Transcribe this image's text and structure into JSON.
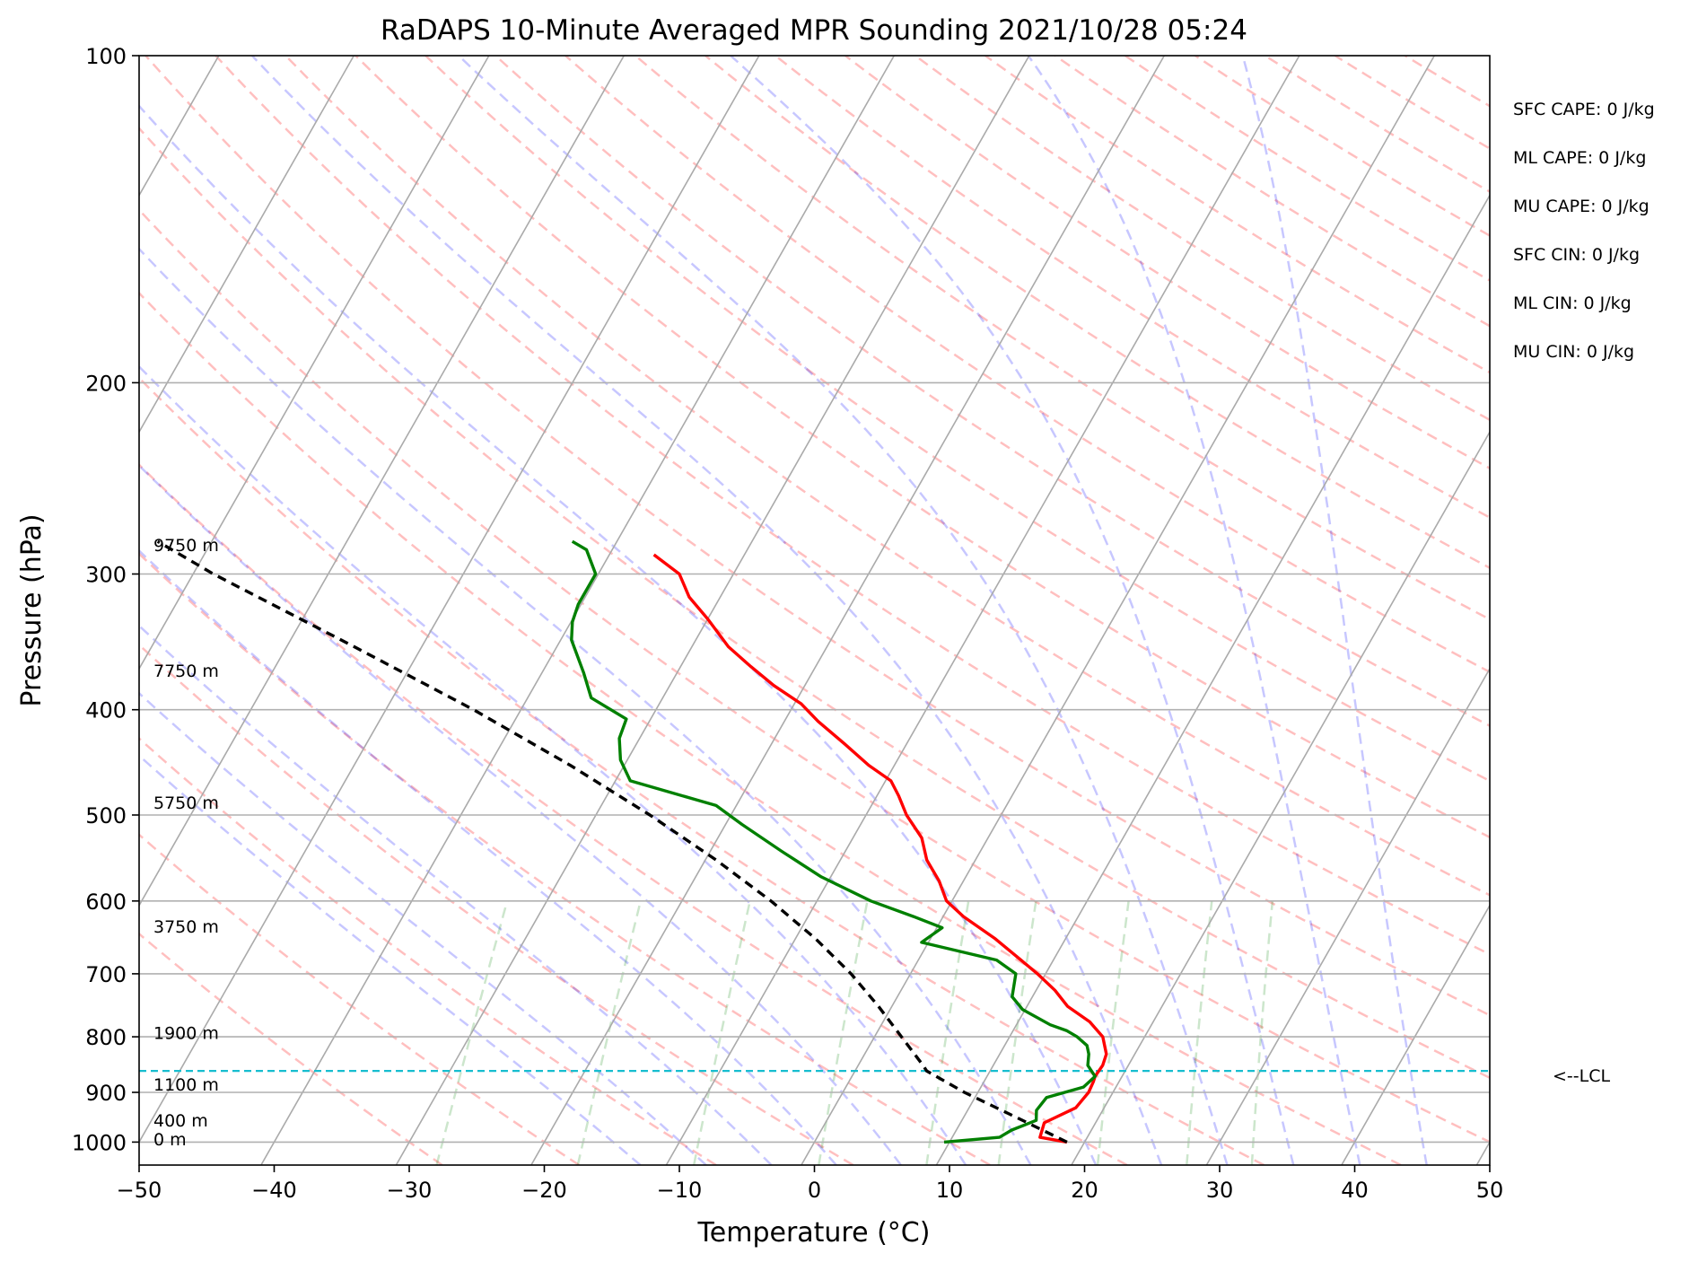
{
  "chart_data": {
    "type": "line",
    "title": "RaDAPS 10-Minute Averaged MPR Sounding 2021/10/28 05:24",
    "xlabel": "Temperature (°C)",
    "ylabel": "Pressure (hPa)",
    "xlim": [
      -50,
      50
    ],
    "ylim": [
      1050,
      100
    ],
    "x_ticks": [
      -50,
      -40,
      -30,
      -20,
      -10,
      0,
      10,
      20,
      30,
      40,
      50
    ],
    "x_tick_labels": [
      "−50",
      "−40",
      "−30",
      "−20",
      "−10",
      "0",
      "10",
      "20",
      "30",
      "40",
      "50"
    ],
    "y_ticks": [
      100,
      200,
      300,
      400,
      500,
      600,
      700,
      800,
      900,
      1000
    ],
    "y_tick_labels": [
      "100",
      "200",
      "300",
      "400",
      "500",
      "600",
      "700",
      "800",
      "900",
      "1000"
    ],
    "y_scale": "log",
    "skew_t": true,
    "grid": true,
    "series": [
      {
        "role": "temperature",
        "color": "#ff0000",
        "points": [
          [
            1000,
            18.7
          ],
          [
            990,
            16.5
          ],
          [
            960,
            16.2
          ],
          [
            930,
            17.9
          ],
          [
            900,
            18.2
          ],
          [
            880,
            18.1
          ],
          [
            870,
            18.0
          ],
          [
            850,
            18.1
          ],
          [
            830,
            17.9
          ],
          [
            800,
            16.9
          ],
          [
            775,
            15.3
          ],
          [
            750,
            13.0
          ],
          [
            725,
            11.4
          ],
          [
            700,
            9.4
          ],
          [
            680,
            7.6
          ],
          [
            650,
            4.8
          ],
          [
            620,
            1.5
          ],
          [
            600,
            -0.4
          ],
          [
            575,
            -1.8
          ],
          [
            550,
            -3.6
          ],
          [
            525,
            -4.9
          ],
          [
            500,
            -7.0
          ],
          [
            480,
            -8.4
          ],
          [
            465,
            -9.6
          ],
          [
            450,
            -11.9
          ],
          [
            430,
            -14.6
          ],
          [
            410,
            -17.5
          ],
          [
            395,
            -19.5
          ],
          [
            380,
            -22.3
          ],
          [
            365,
            -24.8
          ],
          [
            350,
            -27.3
          ],
          [
            330,
            -30.0
          ],
          [
            315,
            -32.3
          ],
          [
            300,
            -34.0
          ],
          [
            288,
            -36.7
          ]
        ]
      },
      {
        "role": "dewpoint",
        "color": "#008000",
        "points": [
          [
            1000,
            9.6
          ],
          [
            990,
            13.5
          ],
          [
            975,
            14.1
          ],
          [
            955,
            15.5
          ],
          [
            935,
            15.1
          ],
          [
            910,
            15.3
          ],
          [
            890,
            17.6
          ],
          [
            870,
            18.0
          ],
          [
            850,
            17.0
          ],
          [
            830,
            16.6
          ],
          [
            815,
            16.1
          ],
          [
            800,
            15.0
          ],
          [
            790,
            14.0
          ],
          [
            780,
            12.5
          ],
          [
            755,
            9.8
          ],
          [
            735,
            8.5
          ],
          [
            700,
            7.8
          ],
          [
            680,
            5.8
          ],
          [
            655,
            -0.5
          ],
          [
            635,
            0.4
          ],
          [
            620,
            -2.2
          ],
          [
            600,
            -6.0
          ],
          [
            570,
            -10.7
          ],
          [
            540,
            -14.7
          ],
          [
            510,
            -18.8
          ],
          [
            490,
            -21.5
          ],
          [
            465,
            -28.9
          ],
          [
            445,
            -30.5
          ],
          [
            425,
            -31.5
          ],
          [
            408,
            -31.8
          ],
          [
            390,
            -35.3
          ],
          [
            370,
            -36.9
          ],
          [
            345,
            -39.2
          ],
          [
            332,
            -39.9
          ],
          [
            320,
            -40.2
          ],
          [
            300,
            -40.2
          ],
          [
            285,
            -41.9
          ],
          [
            280,
            -43.3
          ]
        ]
      },
      {
        "role": "parcel",
        "color": "#000000",
        "dashed": true,
        "points": [
          [
            1000,
            18.7
          ],
          [
            950,
            14.0
          ],
          [
            900,
            9.0
          ],
          [
            860,
            5.3
          ],
          [
            850,
            4.8
          ],
          [
            800,
            2.0
          ],
          [
            750,
            -1.0
          ],
          [
            700,
            -4.4
          ],
          [
            650,
            -8.5
          ],
          [
            600,
            -13.4
          ],
          [
            550,
            -19.2
          ],
          [
            500,
            -26.0
          ],
          [
            450,
            -34.0
          ],
          [
            400,
            -43.5
          ],
          [
            350,
            -55.0
          ],
          [
            300,
            -68.5
          ],
          [
            280,
            -74.0
          ]
        ]
      }
    ],
    "lcl": {
      "pressure": 860,
      "label": "<--LCL",
      "color": "#17becf"
    },
    "height_labels": [
      {
        "pressure": 994,
        "label": "0 m"
      },
      {
        "pressure": 955,
        "label": "400 m"
      },
      {
        "pressure": 885,
        "label": "1100 m"
      },
      {
        "pressure": 793,
        "label": "1900 m"
      },
      {
        "pressure": 633,
        "label": "3750 m"
      },
      {
        "pressure": 487,
        "label": "5750 m"
      },
      {
        "pressure": 368,
        "label": "7750 m"
      },
      {
        "pressure": 282,
        "label": "9750 m"
      }
    ],
    "indices": [
      "SFC CAPE: 0 J/kg",
      "ML CAPE: 0 J/kg",
      "MU CAPE: 0 J/kg",
      "SFC CIN: 0 J/kg",
      "ML CIN: 0 J/kg",
      "MU CIN: 0 J/kg"
    ],
    "background_lines": {
      "isotherms": {
        "color": "#aaaaaa",
        "values": [
          -130,
          -120,
          -110,
          -100,
          -90,
          -80,
          -70,
          -60,
          -50,
          -40,
          -30,
          -20,
          -10,
          0,
          10,
          20,
          30,
          40,
          50
        ]
      },
      "dry_adiabats": {
        "color": "#ff0000",
        "values": [
          -30,
          -20,
          -10,
          0,
          10,
          20,
          30,
          40,
          50,
          60,
          70,
          80,
          90,
          100,
          110,
          120,
          130,
          140,
          150,
          160,
          170,
          180,
          190,
          200,
          210,
          220,
          230,
          240,
          250
        ]
      },
      "moist_adiabats": {
        "color": "#0000ff",
        "values": [
          -15,
          -10,
          -5,
          0,
          5,
          10,
          15,
          20,
          25,
          30,
          35,
          40,
          45
        ]
      },
      "mixing_ratio": {
        "color": "#008000",
        "values": [
          0.4,
          1,
          2,
          4,
          7,
          10,
          16,
          24,
          32
        ]
      }
    }
  }
}
